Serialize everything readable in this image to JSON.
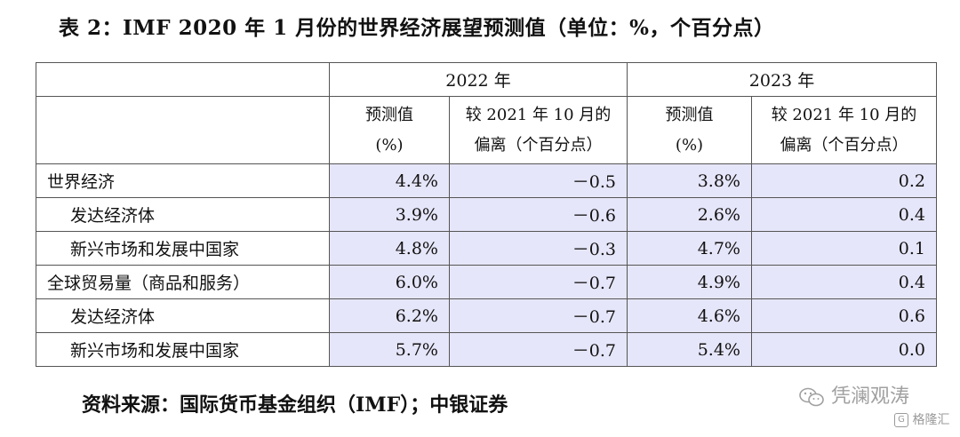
{
  "title": "表 2：IMF 2020 年 1 月份的世界经济展望预测值（单位：%，个百分点）",
  "table": {
    "year_headers": [
      "2022 年",
      "2023 年"
    ],
    "sub_headers": [
      {
        "line1": "预测值",
        "line2": "(%)"
      },
      {
        "line1": "较 2021 年 10 月的",
        "line2": "偏离（个百分点）"
      },
      {
        "line1": "预测值",
        "line2": "(%)"
      },
      {
        "line1": "较 2021 年 10 月的",
        "line2": "偏离（个百分点）"
      }
    ],
    "rows": [
      {
        "label": "世界经济",
        "indent": false,
        "values": [
          "4.4%",
          "－0.5",
          "3.8%",
          "0.2"
        ]
      },
      {
        "label": "发达经济体",
        "indent": true,
        "values": [
          "3.9%",
          "－0.6",
          "2.6%",
          "0.4"
        ]
      },
      {
        "label": "新兴市场和发展中国家",
        "indent": true,
        "values": [
          "4.8%",
          "－0.3",
          "4.7%",
          "0.1"
        ]
      },
      {
        "label": "全球贸易量（商品和服务）",
        "indent": false,
        "values": [
          "6.0%",
          "－0.7",
          "4.9%",
          "0.4"
        ]
      },
      {
        "label": "发达经济体",
        "indent": true,
        "values": [
          "6.2%",
          "－0.7",
          "4.6%",
          "0.6"
        ]
      },
      {
        "label": "新兴市场和发展中国家",
        "indent": true,
        "values": [
          "5.7%",
          "－0.7",
          "5.4%",
          "0.0"
        ]
      }
    ]
  },
  "source": "资料来源：国际货币基金组织（IMF）；中银证券",
  "watermark": {
    "text": "凭澜观涛",
    "icon": "wechat-icon"
  },
  "watermark2": {
    "text": "格隆汇",
    "icon": "gelonghui-logo-icon"
  },
  "colors": {
    "highlight": "#e6e6fa",
    "border": "#555555"
  }
}
